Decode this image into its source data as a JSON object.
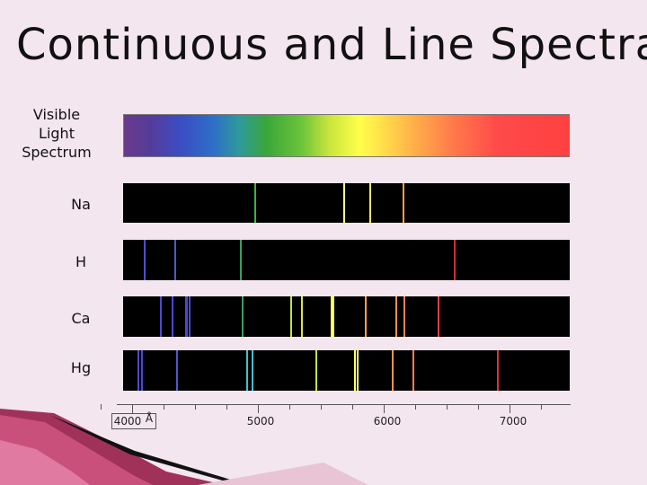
{
  "title": "Continuous and Line Spectra",
  "visible_label": [
    "Visible",
    "Light",
    "Spectrum"
  ],
  "elements": [
    {
      "symbol": "Na",
      "lines": [
        {
          "wl": 4980,
          "color": "#3bb43b"
        },
        {
          "wl": 5683,
          "color": "#ffff88"
        },
        {
          "wl": 5688,
          "color": "#ffff88"
        },
        {
          "wl": 5890,
          "color": "#ffe070"
        },
        {
          "wl": 5896,
          "color": "#ffe070"
        },
        {
          "wl": 6154,
          "color": "#ffa040"
        }
      ]
    },
    {
      "symbol": "H",
      "lines": [
        {
          "wl": 4102,
          "color": "#5050d0"
        },
        {
          "wl": 4340,
          "color": "#4a5ad0"
        },
        {
          "wl": 4861,
          "color": "#3aa060"
        },
        {
          "wl": 6563,
          "color": "#d03030"
        }
      ]
    },
    {
      "symbol": "Ca",
      "lines": [
        {
          "wl": 4226,
          "color": "#4a4ad0"
        },
        {
          "wl": 4318,
          "color": "#4a4ad0"
        },
        {
          "wl": 4425,
          "color": "#4a4ad0"
        },
        {
          "wl": 4435,
          "color": "#4a4ad0"
        },
        {
          "wl": 4455,
          "color": "#4a4ad0"
        },
        {
          "wl": 4878,
          "color": "#3aa060"
        },
        {
          "wl": 5265,
          "color": "#c8e040"
        },
        {
          "wl": 5349,
          "color": "#d8e84a"
        },
        {
          "wl": 5589,
          "color": "#ffff60"
        },
        {
          "wl": 5603,
          "color": "#ffff60"
        },
        {
          "wl": 5857,
          "color": "#ffa050"
        },
        {
          "wl": 6102,
          "color": "#ff9050"
        },
        {
          "wl": 6162,
          "color": "#ff8050"
        },
        {
          "wl": 6439,
          "color": "#e04040"
        }
      ]
    },
    {
      "symbol": "Hg",
      "lines": [
        {
          "wl": 4047,
          "color": "#4a4ad0"
        },
        {
          "wl": 4078,
          "color": "#4a4ad0"
        },
        {
          "wl": 4358,
          "color": "#4a5ad0"
        },
        {
          "wl": 4916,
          "color": "#40c0c8"
        },
        {
          "wl": 4960,
          "color": "#40c0c8"
        },
        {
          "wl": 5461,
          "color": "#c8e040"
        },
        {
          "wl": 5770,
          "color": "#ffff60"
        },
        {
          "wl": 5791,
          "color": "#ffff60"
        },
        {
          "wl": 6072,
          "color": "#ff9050"
        },
        {
          "wl": 6234,
          "color": "#ff8050"
        },
        {
          "wl": 6907,
          "color": "#e03030"
        }
      ]
    }
  ],
  "axis": {
    "unit": "Å",
    "labels": [
      {
        "wl": 4000,
        "text": "4000"
      },
      {
        "wl": 5000,
        "text": "5000"
      },
      {
        "wl": 6000,
        "text": "6000"
      },
      {
        "wl": 7000,
        "text": "7000"
      }
    ],
    "range": [
      3750,
      7300
    ]
  }
}
